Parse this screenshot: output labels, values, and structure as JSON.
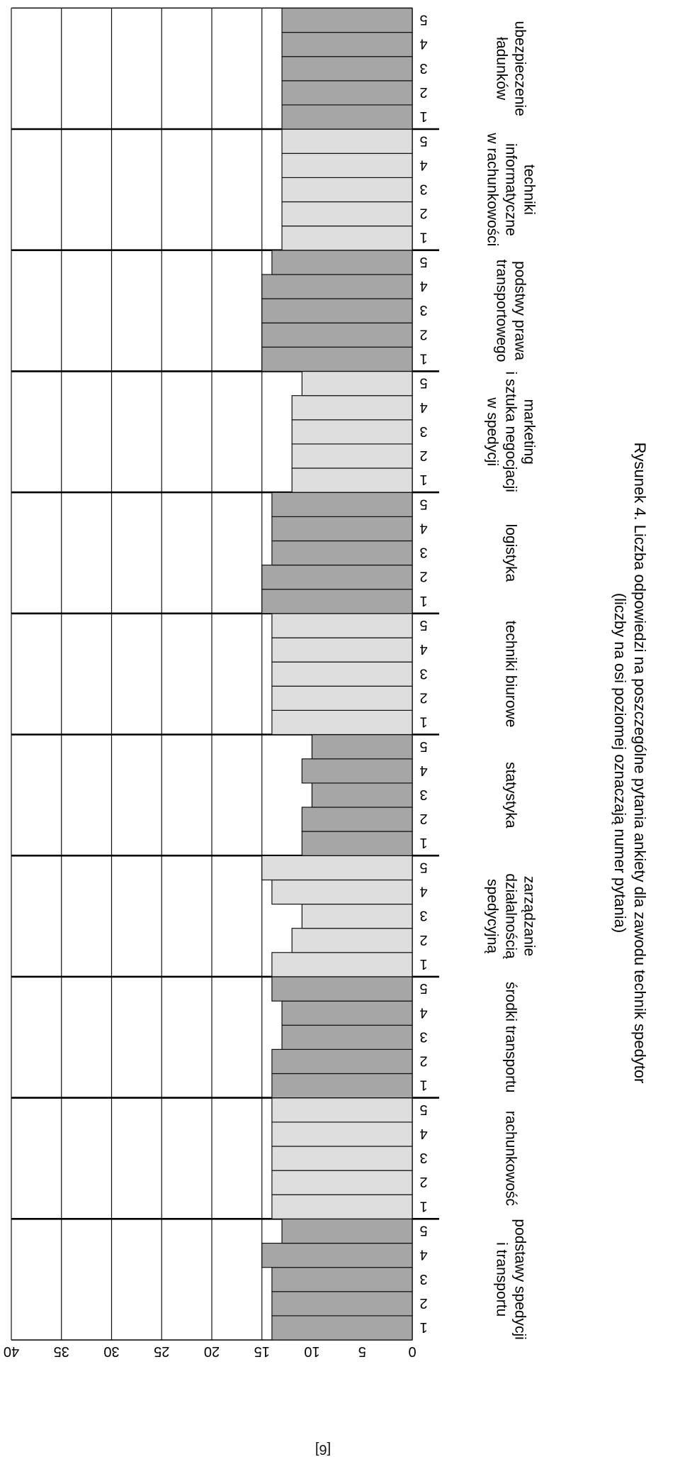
{
  "reference": "[6]",
  "chart_data": {
    "type": "bar",
    "orientation": "rotated",
    "caption": [
      "Rysunek 4. Liczba odpowiedzi na poszczególne pytania ankiety dla zawodu technik spedytor",
      "(liczby na osi poziomej oznaczają numer pytania)"
    ],
    "ylim": [
      0,
      40
    ],
    "yticks": [
      0,
      5,
      10,
      15,
      20,
      25,
      30,
      35,
      40
    ],
    "grid": true,
    "question_labels": [
      "1",
      "2",
      "3",
      "4",
      "5"
    ],
    "groups": [
      {
        "name": [
          "podstawy spedycji",
          "i transportu"
        ],
        "values": [
          14,
          14,
          14,
          15,
          13
        ],
        "shade": "dark"
      },
      {
        "name": [
          "rachunkowość"
        ],
        "values": [
          14,
          14,
          14,
          14,
          14
        ],
        "shade": "light"
      },
      {
        "name": [
          "środki transportu"
        ],
        "values": [
          14,
          14,
          13,
          13,
          14
        ],
        "shade": "dark"
      },
      {
        "name": [
          "zarządzanie",
          "działalnością",
          "spedycyjną"
        ],
        "values": [
          14,
          12,
          11,
          14,
          15
        ],
        "shade": "light"
      },
      {
        "name": [
          "statystyka"
        ],
        "values": [
          11,
          11,
          10,
          11,
          10
        ],
        "shade": "dark"
      },
      {
        "name": [
          "techniki biurowe"
        ],
        "values": [
          14,
          14,
          14,
          14,
          14
        ],
        "shade": "light"
      },
      {
        "name": [
          "logistyka"
        ],
        "values": [
          15,
          15,
          14,
          14,
          14
        ],
        "shade": "dark"
      },
      {
        "name": [
          "marketing",
          "i sztuka negocjacji",
          "w spedycji"
        ],
        "values": [
          12,
          12,
          12,
          12,
          11
        ],
        "shade": "light"
      },
      {
        "name": [
          "podstwy prawa",
          "transportowego"
        ],
        "values": [
          15,
          15,
          15,
          15,
          14
        ],
        "shade": "dark"
      },
      {
        "name": [
          "techniki",
          "informatyczne",
          "w rachunkowości"
        ],
        "values": [
          13,
          13,
          13,
          13,
          13
        ],
        "shade": "light"
      },
      {
        "name": [
          "ubezpieczenie",
          "ładunków"
        ],
        "values": [
          13,
          13,
          13,
          13,
          13
        ],
        "shade": "dark"
      }
    ],
    "colors": {
      "dark": "#a6a6a6",
      "light": "#dedede",
      "bar_stroke": "#111111",
      "grid": "#111111"
    }
  }
}
